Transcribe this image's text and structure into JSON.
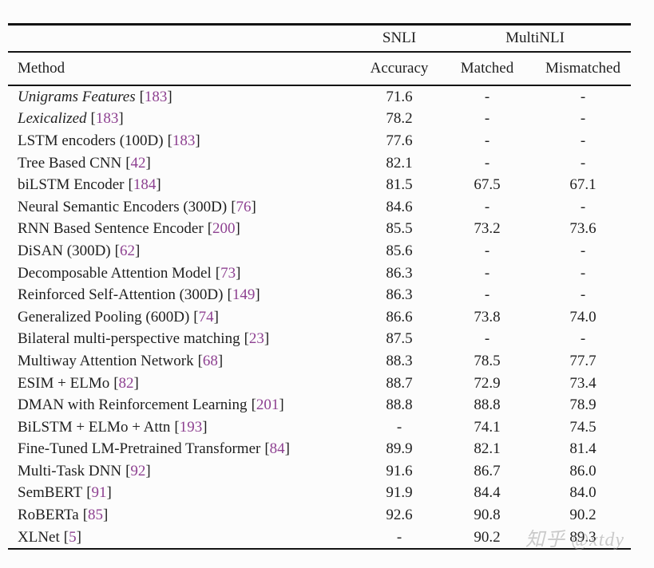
{
  "table": {
    "group_headers": {
      "snli": "SNLI",
      "multinli": "MultiNLI"
    },
    "column_headers": {
      "method": "Method",
      "accuracy": "Accuracy",
      "matched": "Matched",
      "mismatched": "Mismatched"
    },
    "rows": [
      {
        "method": "Unigrams Features",
        "italic": true,
        "cite": "183",
        "snli": "71.6",
        "matched": "-",
        "mismatched": "-"
      },
      {
        "method": "Lexicalized",
        "italic": true,
        "cite": "183",
        "snli": "78.2",
        "matched": "-",
        "mismatched": "-"
      },
      {
        "method": "LSTM encoders (100D)",
        "italic": false,
        "cite": "183",
        "snli": "77.6",
        "matched": "-",
        "mismatched": "-"
      },
      {
        "method": "Tree Based CNN",
        "italic": false,
        "cite": "42",
        "snli": "82.1",
        "matched": "-",
        "mismatched": "-"
      },
      {
        "method": "biLSTM Encoder",
        "italic": false,
        "cite": "184",
        "snli": "81.5",
        "matched": "67.5",
        "mismatched": "67.1"
      },
      {
        "method": "Neural Semantic Encoders (300D)",
        "italic": false,
        "cite": "76",
        "snli": "84.6",
        "matched": "-",
        "mismatched": "-"
      },
      {
        "method": "RNN Based Sentence Encoder",
        "italic": false,
        "cite": "200",
        "snli": "85.5",
        "matched": "73.2",
        "mismatched": "73.6"
      },
      {
        "method": "DiSAN (300D)",
        "italic": false,
        "cite": "62",
        "snli": "85.6",
        "matched": "-",
        "mismatched": "-"
      },
      {
        "method": "Decomposable Attention Model",
        "italic": false,
        "cite": "73",
        "snli": "86.3",
        "matched": "-",
        "mismatched": "-"
      },
      {
        "method": "Reinforced Self-Attention (300D)",
        "italic": false,
        "cite": "149",
        "snli": "86.3",
        "matched": "-",
        "mismatched": "-"
      },
      {
        "method": "Generalized Pooling (600D)",
        "italic": false,
        "cite": "74",
        "snli": "86.6",
        "matched": "73.8",
        "mismatched": "74.0"
      },
      {
        "method": "Bilateral multi-perspective matching",
        "italic": false,
        "cite": "23",
        "snli": "87.5",
        "matched": "-",
        "mismatched": "-"
      },
      {
        "method": "Multiway Attention Network",
        "italic": false,
        "cite": "68",
        "snli": "88.3",
        "matched": "78.5",
        "mismatched": "77.7"
      },
      {
        "method": "ESIM + ELMo",
        "italic": false,
        "cite": "82",
        "snli": "88.7",
        "matched": "72.9",
        "mismatched": "73.4"
      },
      {
        "method": "DMAN with Reinforcement Learning",
        "italic": false,
        "cite": "201",
        "snli": "88.8",
        "matched": "88.8",
        "mismatched": "78.9"
      },
      {
        "method": "BiLSTM + ELMo + Attn",
        "italic": false,
        "cite": "193",
        "snli": "-",
        "matched": "74.1",
        "mismatched": "74.5"
      },
      {
        "method": "Fine-Tuned LM-Pretrained Transformer",
        "italic": false,
        "cite": "84",
        "snli": "89.9",
        "matched": "82.1",
        "mismatched": "81.4"
      },
      {
        "method": "Multi-Task DNN",
        "italic": false,
        "cite": "92",
        "snli": "91.6",
        "matched": "86.7",
        "mismatched": "86.0"
      },
      {
        "method": "SemBERT",
        "italic": false,
        "cite": "91",
        "snli": "91.9",
        "matched": "84.4",
        "mismatched": "84.0"
      },
      {
        "method": "RoBERTa",
        "italic": false,
        "cite": "85",
        "snli": "92.6",
        "matched": "90.8",
        "mismatched": "90.2"
      },
      {
        "method": "XLNet",
        "italic": false,
        "cite": "5",
        "snli": "-",
        "matched": "90.2",
        "mismatched": "89.3"
      }
    ]
  },
  "watermark": "知乎 @xtdy",
  "colors": {
    "citation": "#8e4191",
    "text": "#1f1f1f",
    "rule": "#131313",
    "background": "#fcfcfc",
    "watermark": "#a0a0a0"
  }
}
